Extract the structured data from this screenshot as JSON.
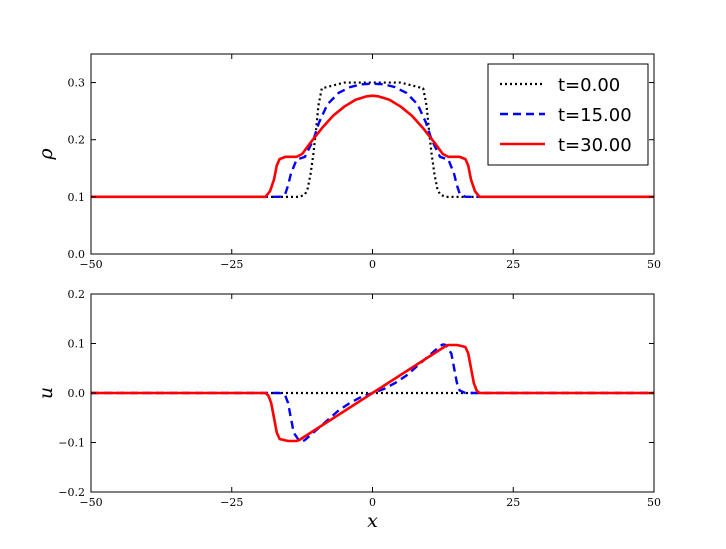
{
  "chart_data": [
    {
      "type": "line",
      "ylabel": "ρ",
      "xlim": [
        -50,
        50
      ],
      "ylim": [
        0.0,
        0.35
      ],
      "x_ticks": [
        -50,
        -25,
        0,
        25,
        50
      ],
      "x_tick_labels": [
        "−50",
        "−25",
        "0",
        "25",
        "50"
      ],
      "y_ticks": [
        0.0,
        0.1,
        0.2,
        0.3
      ],
      "y_tick_labels": [
        "0.0",
        "0.1",
        "0.2",
        "0.3"
      ],
      "grid": false,
      "legend_position": "top-right",
      "series": [
        {
          "name": "t=0.00",
          "color": "#000000",
          "style": "dotted",
          "x": [
            -50,
            -13,
            -12,
            -11.5,
            -11,
            -10.5,
            -10,
            -9.6,
            -9,
            -5,
            0,
            5,
            9,
            9.6,
            10,
            10.5,
            11,
            11.5,
            12,
            13,
            50
          ],
          "y": [
            0.1,
            0.1,
            0.104,
            0.115,
            0.14,
            0.175,
            0.22,
            0.26,
            0.29,
            0.3,
            0.3,
            0.3,
            0.29,
            0.26,
            0.22,
            0.175,
            0.14,
            0.115,
            0.104,
            0.1,
            0.1
          ]
        },
        {
          "name": "t=15.00",
          "color": "#0000ff",
          "style": "dashed",
          "x": [
            -50,
            -16.5,
            -15.5,
            -15,
            -14.5,
            -13.5,
            -12,
            -10.5,
            -9.5,
            -8,
            -6,
            -4,
            -2,
            0,
            2,
            4,
            6,
            8,
            9.5,
            10.5,
            12,
            13.5,
            14.5,
            15,
            15.5,
            16.5,
            50
          ],
          "y": [
            0.1,
            0.1,
            0.105,
            0.12,
            0.14,
            0.165,
            0.17,
            0.2,
            0.23,
            0.262,
            0.282,
            0.292,
            0.297,
            0.298,
            0.297,
            0.292,
            0.282,
            0.262,
            0.23,
            0.2,
            0.17,
            0.165,
            0.14,
            0.12,
            0.105,
            0.1,
            0.1
          ]
        },
        {
          "name": "t=30.00",
          "color": "#ff0000",
          "style": "solid",
          "x": [
            -50,
            -19,
            -18.2,
            -17.5,
            -17,
            -16.5,
            -15.5,
            -13.5,
            -12.5,
            -11,
            -9,
            -7,
            -5,
            -3,
            -1,
            0,
            1,
            3,
            5,
            7,
            9,
            11,
            12.5,
            13.5,
            15.5,
            16.5,
            17,
            17.5,
            18.2,
            19,
            50
          ],
          "y": [
            0.1,
            0.1,
            0.11,
            0.13,
            0.155,
            0.166,
            0.17,
            0.17,
            0.175,
            0.195,
            0.22,
            0.242,
            0.258,
            0.27,
            0.276,
            0.277,
            0.276,
            0.27,
            0.258,
            0.242,
            0.22,
            0.195,
            0.175,
            0.17,
            0.17,
            0.166,
            0.155,
            0.13,
            0.11,
            0.1,
            0.1
          ]
        }
      ]
    },
    {
      "type": "line",
      "xlabel": "x",
      "ylabel": "u",
      "xlim": [
        -50,
        50
      ],
      "ylim": [
        -0.2,
        0.2
      ],
      "x_ticks": [
        -50,
        -25,
        0,
        25,
        50
      ],
      "x_tick_labels": [
        "−50",
        "−25",
        "0",
        "25",
        "50"
      ],
      "y_ticks": [
        -0.2,
        -0.1,
        0.0,
        0.1,
        0.2
      ],
      "y_tick_labels": [
        "−0.2",
        "−0.1",
        "0.0",
        "0.1",
        "0.2"
      ],
      "grid": false,
      "series": [
        {
          "name": "t=0.00",
          "color": "#000000",
          "style": "dotted",
          "x": [
            -50,
            50
          ],
          "y": [
            0.0,
            0.0
          ]
        },
        {
          "name": "t=15.00",
          "color": "#0000ff",
          "style": "dashed",
          "x": [
            -50,
            -16.5,
            -15.5,
            -15,
            -14.5,
            -14,
            -13,
            -12.5,
            -12,
            -10,
            -8,
            -6,
            -4,
            -2,
            0,
            2,
            4,
            6,
            8,
            10,
            12,
            12.5,
            13,
            14,
            14.5,
            15,
            15.5,
            16.5,
            50
          ],
          "y": [
            0.0,
            0.0,
            -0.005,
            -0.02,
            -0.05,
            -0.08,
            -0.097,
            -0.098,
            -0.095,
            -0.075,
            -0.055,
            -0.035,
            -0.02,
            -0.008,
            0.0,
            0.008,
            0.02,
            0.035,
            0.055,
            0.075,
            0.095,
            0.098,
            0.097,
            0.08,
            0.05,
            0.02,
            0.005,
            0.0,
            0.0
          ]
        },
        {
          "name": "t=30.00",
          "color": "#ff0000",
          "style": "solid",
          "x": [
            -50,
            -19,
            -18.5,
            -18,
            -17.5,
            -17,
            -16.5,
            -15,
            -13.5,
            -13,
            0,
            13,
            13.5,
            15,
            16.5,
            17,
            17.5,
            18,
            18.5,
            19,
            50
          ],
          "y": [
            0.0,
            0.0,
            -0.005,
            -0.02,
            -0.05,
            -0.08,
            -0.093,
            -0.097,
            -0.097,
            -0.095,
            0.0,
            0.095,
            0.097,
            0.097,
            0.093,
            0.08,
            0.05,
            0.02,
            0.005,
            0.0,
            0.0
          ]
        }
      ]
    }
  ]
}
